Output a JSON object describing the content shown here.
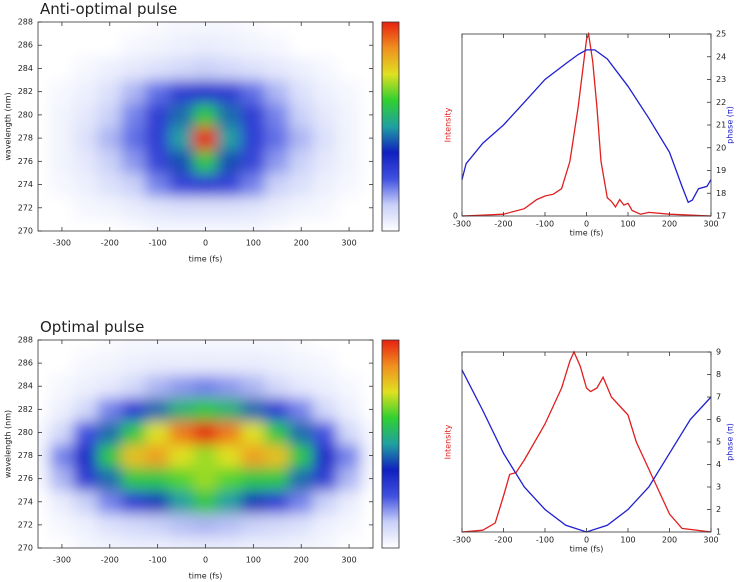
{
  "chart_data": [
    {
      "type": "heatmap",
      "title": "Anti-optimal pulse",
      "xlabel": "time (fs)",
      "ylabel": "wavelength (nm)",
      "xlim": [
        -350,
        350
      ],
      "ylim": [
        270,
        288
      ],
      "xticks": [
        -300,
        -200,
        -100,
        0,
        100,
        200,
        300
      ],
      "yticks": [
        270,
        272,
        274,
        276,
        278,
        280,
        282,
        284,
        286,
        288
      ],
      "zlim": [
        0,
        1
      ],
      "colormap": [
        "#ffffff",
        "#c8d0f8",
        "#4050e0",
        "#1020c0",
        "#20a0a0",
        "#30d030",
        "#e0e020",
        "#f09020",
        "#e82010"
      ],
      "x": [
        -350,
        -300,
        -250,
        -200,
        -150,
        -100,
        -50,
        0,
        50,
        100,
        150,
        200,
        250,
        300,
        350
      ],
      "y": [
        270,
        272,
        274,
        276,
        278,
        280,
        282,
        284,
        286,
        288
      ],
      "values": [
        [
          0,
          0,
          0,
          0,
          0.01,
          0.02,
          0.02,
          0.02,
          0.02,
          0.02,
          0.01,
          0,
          0,
          0,
          0
        ],
        [
          0,
          0,
          0.02,
          0.03,
          0.05,
          0.07,
          0.08,
          0.08,
          0.08,
          0.07,
          0.05,
          0.03,
          0.02,
          0,
          0
        ],
        [
          0,
          0.02,
          0.04,
          0.08,
          0.12,
          0.2,
          0.28,
          0.3,
          0.28,
          0.2,
          0.12,
          0.08,
          0.04,
          0.02,
          0
        ],
        [
          0,
          0.03,
          0.06,
          0.12,
          0.18,
          0.28,
          0.42,
          0.6,
          0.42,
          0.28,
          0.18,
          0.12,
          0.06,
          0.03,
          0
        ],
        [
          0,
          0.03,
          0.08,
          0.15,
          0.22,
          0.3,
          0.5,
          1.0,
          0.5,
          0.3,
          0.22,
          0.15,
          0.08,
          0.03,
          0
        ],
        [
          0,
          0.03,
          0.06,
          0.12,
          0.2,
          0.3,
          0.45,
          0.6,
          0.45,
          0.3,
          0.2,
          0.12,
          0.06,
          0.03,
          0
        ],
        [
          0,
          0.02,
          0.04,
          0.08,
          0.15,
          0.22,
          0.3,
          0.32,
          0.3,
          0.22,
          0.15,
          0.08,
          0.04,
          0.02,
          0
        ],
        [
          0,
          0,
          0.02,
          0.04,
          0.06,
          0.08,
          0.1,
          0.12,
          0.1,
          0.08,
          0.06,
          0.04,
          0.02,
          0,
          0
        ],
        [
          0,
          0,
          0,
          0,
          0.02,
          0.03,
          0.04,
          0.05,
          0.04,
          0.03,
          0.02,
          0,
          0,
          0,
          0
        ],
        [
          0,
          0,
          0,
          0,
          0,
          0.01,
          0.02,
          0.02,
          0.02,
          0.01,
          0,
          0,
          0,
          0,
          0
        ]
      ]
    },
    {
      "type": "heatmap",
      "title": "Optimal pulse",
      "xlabel": "time (fs)",
      "ylabel": "wavelength (nm)",
      "xlim": [
        -350,
        350
      ],
      "ylim": [
        270,
        288
      ],
      "xticks": [
        -300,
        -200,
        -100,
        0,
        100,
        200,
        300
      ],
      "yticks": [
        270,
        272,
        274,
        276,
        278,
        280,
        282,
        284,
        286,
        288
      ],
      "zlim": [
        0,
        1
      ],
      "colormap": [
        "#ffffff",
        "#c8d0f8",
        "#4050e0",
        "#1020c0",
        "#20a0a0",
        "#30d030",
        "#e0e020",
        "#f09020",
        "#e82010"
      ],
      "x": [
        -350,
        -300,
        -250,
        -200,
        -150,
        -100,
        -50,
        0,
        50,
        100,
        150,
        200,
        250,
        300,
        350
      ],
      "y": [
        270,
        272,
        274,
        276,
        278,
        280,
        282,
        284,
        286,
        288
      ],
      "values": [
        [
          0,
          0,
          0.02,
          0.03,
          0.04,
          0.04,
          0.05,
          0.05,
          0.05,
          0.04,
          0.04,
          0.03,
          0.02,
          0,
          0
        ],
        [
          0,
          0.02,
          0.04,
          0.08,
          0.1,
          0.12,
          0.14,
          0.15,
          0.14,
          0.12,
          0.1,
          0.08,
          0.04,
          0.02,
          0
        ],
        [
          0,
          0.05,
          0.12,
          0.2,
          0.3,
          0.4,
          0.5,
          0.6,
          0.5,
          0.4,
          0.3,
          0.2,
          0.12,
          0.05,
          0
        ],
        [
          0.02,
          0.15,
          0.3,
          0.45,
          0.6,
          0.6,
          0.65,
          0.7,
          0.65,
          0.6,
          0.6,
          0.45,
          0.3,
          0.15,
          0.02
        ],
        [
          0.03,
          0.2,
          0.35,
          0.6,
          0.8,
          0.85,
          0.75,
          0.7,
          0.75,
          0.85,
          0.8,
          0.6,
          0.35,
          0.2,
          0.03
        ],
        [
          0.02,
          0.1,
          0.25,
          0.45,
          0.6,
          0.75,
          0.9,
          1.0,
          0.9,
          0.75,
          0.6,
          0.45,
          0.25,
          0.1,
          0.02
        ],
        [
          0,
          0.04,
          0.1,
          0.2,
          0.3,
          0.45,
          0.55,
          0.6,
          0.55,
          0.45,
          0.3,
          0.2,
          0.1,
          0.04,
          0
        ],
        [
          0,
          0.02,
          0.04,
          0.06,
          0.1,
          0.15,
          0.18,
          0.2,
          0.18,
          0.15,
          0.1,
          0.06,
          0.04,
          0.02,
          0
        ],
        [
          0,
          0,
          0.02,
          0.03,
          0.04,
          0.05,
          0.05,
          0.05,
          0.05,
          0.05,
          0.04,
          0.03,
          0.02,
          0,
          0
        ],
        [
          0,
          0,
          0,
          0.01,
          0.02,
          0.02,
          0.02,
          0.02,
          0.02,
          0.02,
          0.02,
          0.01,
          0,
          0,
          0
        ]
      ]
    },
    {
      "type": "line",
      "xlabel": "time (fs)",
      "ylabel": "Intensity",
      "y2label": "phase (π)",
      "xlim": [
        -300,
        300
      ],
      "xticks": [
        -300,
        -200,
        -100,
        0,
        100,
        200,
        300
      ],
      "ylim": [
        0,
        1
      ],
      "yticks": [
        0
      ],
      "y2lim": [
        17,
        25
      ],
      "y2ticks": [
        17,
        18,
        19,
        20,
        21,
        22,
        23,
        24,
        25
      ],
      "series": [
        {
          "color": "#e02020",
          "x": [
            -300,
            -250,
            -200,
            -150,
            -120,
            -100,
            -80,
            -60,
            -40,
            -20,
            0,
            5,
            15,
            25,
            35,
            50,
            60,
            70,
            80,
            90,
            100,
            110,
            130,
            150,
            200,
            300
          ],
          "values": [
            0,
            0.005,
            0.01,
            0.04,
            0.09,
            0.11,
            0.12,
            0.15,
            0.3,
            0.6,
            0.97,
            1.0,
            0.85,
            0.6,
            0.3,
            0.1,
            0.08,
            0.05,
            0.09,
            0.06,
            0.07,
            0.03,
            0.01,
            0.02,
            0.01,
            0
          ]
        },
        {
          "color": "#2020d0",
          "axis": "y2",
          "x": [
            -300,
            -290,
            -250,
            -200,
            -150,
            -100,
            -50,
            -20,
            0,
            20,
            50,
            100,
            150,
            200,
            230,
            245,
            255,
            270,
            290,
            300
          ],
          "values": [
            18.6,
            19.3,
            20.2,
            21.0,
            22.0,
            23.0,
            23.7,
            24.1,
            24.3,
            24.3,
            23.9,
            22.7,
            21.3,
            19.8,
            18.3,
            17.6,
            17.7,
            18.2,
            18.3,
            18.6
          ]
        }
      ]
    },
    {
      "type": "line",
      "xlabel": "time (fs)",
      "ylabel": "Intensity",
      "y2label": "phase (π)",
      "xlim": [
        -300,
        300
      ],
      "xticks": [
        -300,
        -200,
        -100,
        0,
        100,
        200,
        300
      ],
      "ylim": [
        0,
        1
      ],
      "y2lim": [
        1,
        9
      ],
      "y2ticks": [
        1,
        2,
        3,
        4,
        5,
        6,
        7,
        8,
        9
      ],
      "series": [
        {
          "color": "#e02020",
          "x": [
            -300,
            -250,
            -220,
            -200,
            -185,
            -170,
            -150,
            -100,
            -60,
            -40,
            -30,
            -15,
            0,
            10,
            25,
            40,
            60,
            80,
            100,
            120,
            140,
            160,
            180,
            200,
            230,
            300
          ],
          "values": [
            0,
            0.01,
            0.05,
            0.2,
            0.32,
            0.33,
            0.4,
            0.6,
            0.8,
            0.95,
            1.0,
            0.92,
            0.8,
            0.78,
            0.8,
            0.86,
            0.75,
            0.7,
            0.65,
            0.5,
            0.4,
            0.3,
            0.2,
            0.1,
            0.02,
            0
          ]
        },
        {
          "color": "#2020d0",
          "axis": "y2",
          "x": [
            -300,
            -250,
            -200,
            -150,
            -100,
            -50,
            0,
            50,
            100,
            150,
            200,
            250,
            300
          ],
          "values": [
            8.2,
            6.4,
            4.5,
            3.0,
            2.0,
            1.3,
            1.0,
            1.3,
            2.0,
            3.0,
            4.5,
            6.0,
            7.0
          ]
        }
      ]
    }
  ]
}
